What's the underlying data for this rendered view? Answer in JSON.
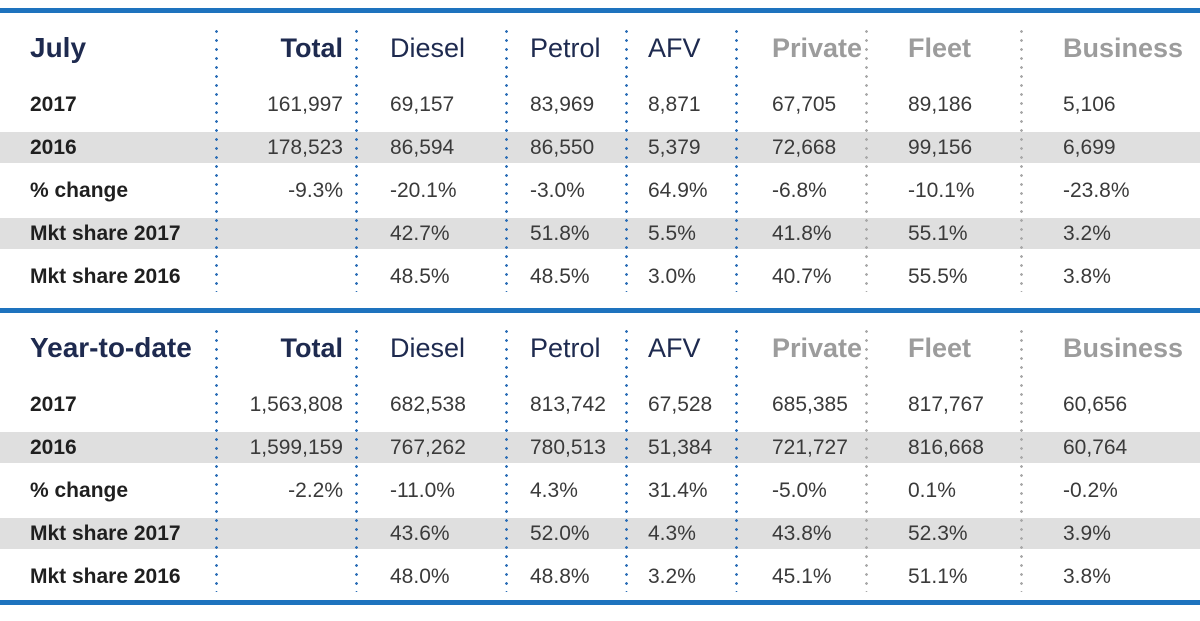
{
  "colors": {
    "accent_blue_rule": "#1e73be",
    "navy_text": "#1e2a4f",
    "grey_header_text": "#9c9c9c",
    "stripe_grey": "#dfdfdf",
    "dot_blue": "#2d6fb7",
    "dot_grey": "#a9a9a9"
  },
  "chart_data": [
    {
      "type": "table",
      "title": "July",
      "columns": [
        "Total",
        "Diesel",
        "Petrol",
        "AFV",
        "Private",
        "Fleet",
        "Business"
      ],
      "row_labels": [
        "2017",
        "2016",
        "% change",
        "Mkt share 2017",
        "Mkt share 2016"
      ],
      "rows": [
        [
          "161,997",
          "69,157",
          "83,969",
          "8,871",
          "67,705",
          "89,186",
          "5,106"
        ],
        [
          "178,523",
          "86,594",
          "86,550",
          "5,379",
          "72,668",
          "99,156",
          "6,699"
        ],
        [
          "-9.3%",
          "-20.1%",
          "-3.0%",
          "64.9%",
          "-6.8%",
          "-10.1%",
          "-23.8%"
        ],
        [
          "",
          "42.7%",
          "51.8%",
          "5.5%",
          "41.8%",
          "55.1%",
          "3.2%"
        ],
        [
          "",
          "48.5%",
          "48.5%",
          "3.0%",
          "40.7%",
          "55.5%",
          "3.8%"
        ]
      ],
      "striped_rows": [
        1,
        3
      ]
    },
    {
      "type": "table",
      "title": "Year-to-date",
      "columns": [
        "Total",
        "Diesel",
        "Petrol",
        "AFV",
        "Private",
        "Fleet",
        "Business"
      ],
      "row_labels": [
        "2017",
        "2016",
        "% change",
        "Mkt share 2017",
        "Mkt share 2016"
      ],
      "rows": [
        [
          "1,563,808",
          "682,538",
          "813,742",
          "67,528",
          "685,385",
          "817,767",
          "60,656"
        ],
        [
          "1,599,159",
          "767,262",
          "780,513",
          "51,384",
          "721,727",
          "816,668",
          "60,764"
        ],
        [
          "-2.2%",
          "-11.0%",
          "4.3%",
          "31.4%",
          "-5.0%",
          "0.1%",
          "-0.2%"
        ],
        [
          "",
          "43.6%",
          "52.0%",
          "4.3%",
          "43.8%",
          "52.3%",
          "3.9%"
        ],
        [
          "",
          "48.0%",
          "48.8%",
          "3.2%",
          "45.1%",
          "51.1%",
          "3.8%"
        ]
      ],
      "striped_rows": [
        1,
        3
      ]
    }
  ]
}
